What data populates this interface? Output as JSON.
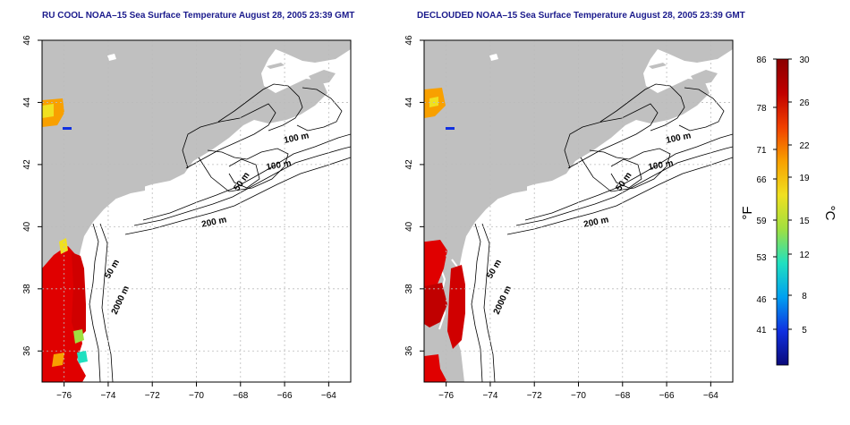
{
  "titles": {
    "left": "RU COOL NOAA–15 Sea Surface Temperature August 28, 2005 23:39 GMT",
    "right": "DECLOUDED NOAA–15 Sea Surface Temperature August 28, 2005 23:39 GMT"
  },
  "map": {
    "lon_range": [
      -77,
      -63
    ],
    "lat_range": [
      35,
      46
    ],
    "lon_ticks": [
      -76,
      -74,
      -72,
      -70,
      -68,
      -66,
      -64
    ],
    "lon_tick_labels": [
      "−76",
      "−74",
      "−72",
      "−70",
      "−68",
      "−66",
      "−64"
    ],
    "lat_ticks": [
      36,
      38,
      40,
      42,
      44,
      46
    ],
    "lat_tick_labels": [
      "36",
      "38",
      "40",
      "42",
      "44",
      "46"
    ],
    "grid": true,
    "contour_labels": [
      "100 m",
      "100 m",
      "50 m",
      "200 m",
      "50 m",
      "2000 m"
    ],
    "colors": {
      "land": "#c0c0c0",
      "ocean": "#ffffff",
      "contour": "#000000"
    }
  },
  "colorbar": {
    "celsius_ticks": [
      "30",
      "26",
      "22",
      "19",
      "15",
      "12",
      "8",
      "5"
    ],
    "fahrenheit_ticks": [
      "86",
      "78",
      "71",
      "66",
      "59",
      "53",
      "46",
      "41"
    ],
    "celsius_label": "°C",
    "fahrenheit_label": "°F",
    "colors": [
      "#0a0a7a",
      "#1030e0",
      "#00a0f0",
      "#20e0c0",
      "#a0e040",
      "#f0e020",
      "#f8a000",
      "#f04000",
      "#c00000",
      "#8a0000"
    ]
  }
}
